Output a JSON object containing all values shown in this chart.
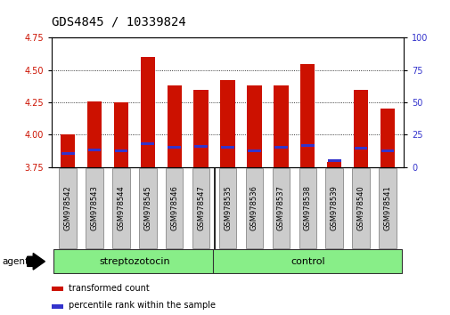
{
  "title": "GDS4845 / 10339824",
  "samples": [
    "GSM978542",
    "GSM978543",
    "GSM978544",
    "GSM978545",
    "GSM978546",
    "GSM978547",
    "GSM978535",
    "GSM978536",
    "GSM978537",
    "GSM978538",
    "GSM978539",
    "GSM978540",
    "GSM978541"
  ],
  "red_values": [
    4.0,
    4.26,
    4.25,
    4.6,
    4.38,
    4.35,
    4.42,
    4.38,
    4.38,
    4.55,
    3.79,
    4.35,
    4.2
  ],
  "blue_values": [
    3.855,
    3.882,
    3.875,
    3.93,
    3.9,
    3.91,
    3.9,
    3.872,
    3.9,
    3.918,
    3.8,
    3.898,
    3.872
  ],
  "baseline": 3.75,
  "ylim_left": [
    3.75,
    4.75
  ],
  "ylim_right": [
    0,
    100
  ],
  "yticks_left": [
    3.75,
    4.0,
    4.25,
    4.5,
    4.75
  ],
  "yticks_right": [
    0,
    25,
    50,
    75,
    100
  ],
  "red_color": "#cc1100",
  "blue_color": "#3333cc",
  "strep_label": "streptozotocin",
  "control_label": "control",
  "agent_label": "agent",
  "strep_indices": [
    0,
    1,
    2,
    3,
    4,
    5
  ],
  "control_indices": [
    6,
    7,
    8,
    9,
    10,
    11,
    12
  ],
  "legend1": "transformed count",
  "legend2": "percentile rank within the sample",
  "bar_width": 0.55,
  "group_bg_color": "#88ee88",
  "sample_bg_color": "#cccccc",
  "title_fontsize": 10,
  "tick_label_fontsize": 7,
  "group_border_color": "#333333"
}
